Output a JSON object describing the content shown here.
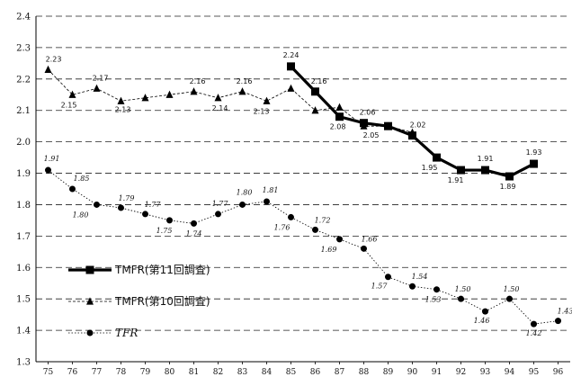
{
  "chart_data": {
    "type": "line",
    "categories": [
      "75",
      "76",
      "77",
      "78",
      "79",
      "80",
      "81",
      "82",
      "83",
      "84",
      "85",
      "86",
      "87",
      "88",
      "89",
      "90",
      "91",
      "92",
      "93",
      "94",
      "95",
      "96"
    ],
    "ylim": [
      1.3,
      2.4
    ],
    "yticks": [
      "1.3",
      "1.4",
      "1.5",
      "1.6",
      "1.7",
      "1.8",
      "1.9",
      "2.0",
      "2.1",
      "2.2",
      "2.3",
      "2.4"
    ],
    "grid": "horizontal dashed",
    "legend_position": "lower-left",
    "series": [
      {
        "name": "TMFR(第11回調査)",
        "style": "thick-solid-square",
        "color": "#000000",
        "values": [
          null,
          null,
          null,
          null,
          null,
          null,
          null,
          null,
          null,
          null,
          2.24,
          2.16,
          2.08,
          2.06,
          2.05,
          2.02,
          1.95,
          1.91,
          1.91,
          1.89,
          1.93,
          null
        ],
        "labels": [
          null,
          null,
          null,
          null,
          null,
          null,
          null,
          null,
          null,
          null,
          "2.24",
          "2.16",
          "2.08",
          "2.06",
          null,
          "2.02",
          "1.95",
          "1.91",
          "1.91",
          "1.89",
          "1.93",
          null
        ]
      },
      {
        "name": "TMFR(第10回調査)",
        "style": "thin-dashed-triangle",
        "color": "#000000",
        "values": [
          2.23,
          2.15,
          2.17,
          2.13,
          2.14,
          2.15,
          2.16,
          2.14,
          2.16,
          2.13,
          2.17,
          2.1,
          2.11,
          2.05,
          2.05,
          2.03,
          null,
          null,
          null,
          null,
          null,
          null
        ],
        "labels": [
          "2.23",
          "2.15",
          "2.17",
          "2.13",
          null,
          null,
          "2.16",
          "2.14",
          "2.16",
          "2.13",
          null,
          null,
          null,
          "2.05",
          null,
          null,
          null,
          null,
          null,
          null,
          null,
          null
        ]
      },
      {
        "name": "TFR",
        "style": "dotted-circle",
        "color": "#000000",
        "values": [
          1.91,
          1.85,
          1.8,
          1.79,
          1.77,
          1.75,
          1.74,
          1.77,
          1.8,
          1.81,
          1.76,
          1.72,
          1.69,
          1.66,
          1.57,
          1.54,
          1.53,
          1.5,
          1.46,
          1.5,
          1.42,
          1.43
        ],
        "labels": [
          "1.91",
          "1.85",
          "1.80",
          "1.79",
          "1.77",
          "1.75",
          "1.74",
          "1.77",
          "1.80",
          "1.81",
          "1.76",
          "1.72",
          "1.69",
          "1.66",
          "1.57",
          "1.54",
          "1.53",
          "1.50",
          "1.46",
          "1.50",
          "1.42",
          "1.43"
        ]
      }
    ]
  }
}
